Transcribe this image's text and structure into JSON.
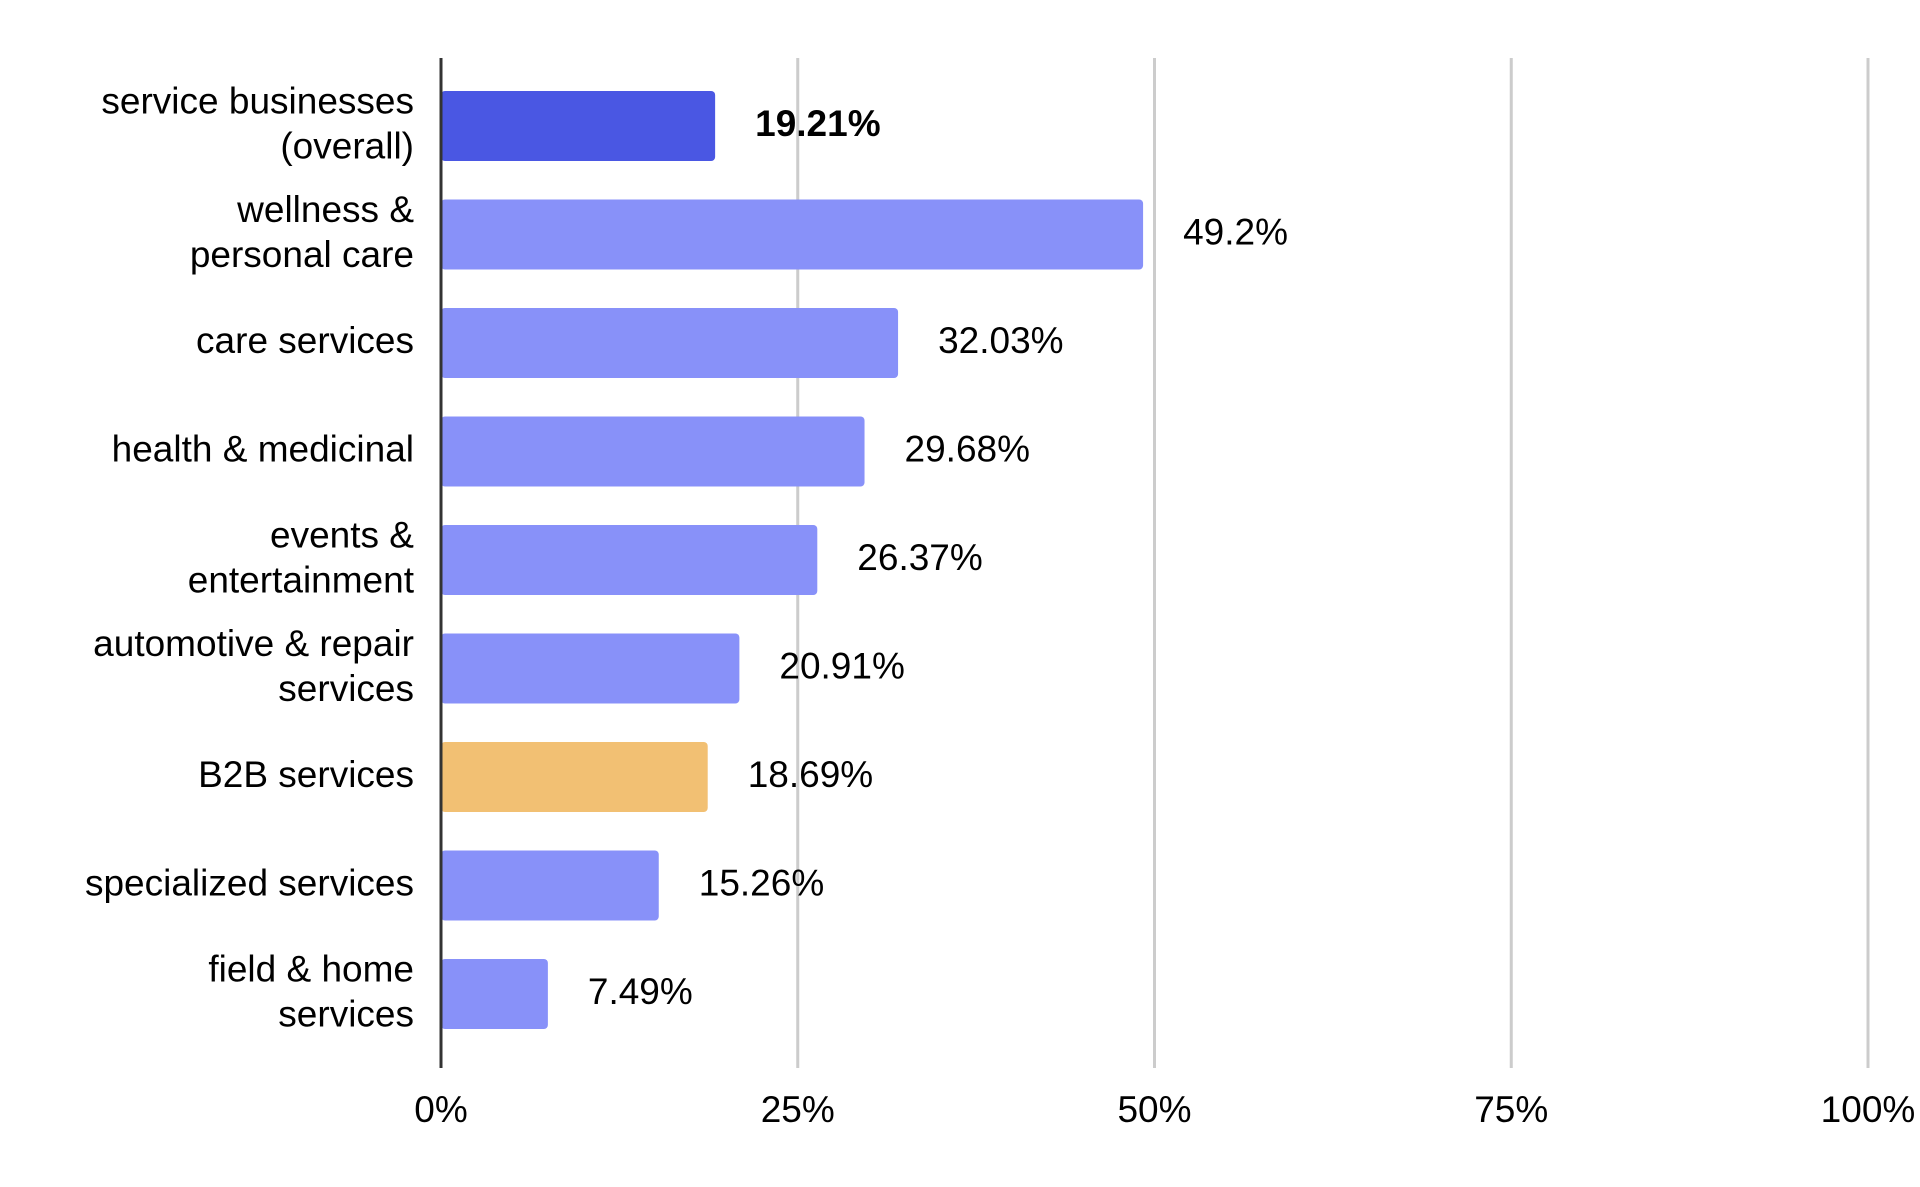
{
  "chart_data": {
    "type": "bar",
    "orientation": "horizontal",
    "categories": [
      [
        "service businesses",
        "(overall)"
      ],
      [
        "wellness &",
        "personal care"
      ],
      [
        "care services"
      ],
      [
        "health & medicinal"
      ],
      [
        "events &",
        "entertainment"
      ],
      [
        "automotive & repair",
        "services"
      ],
      [
        "B2B services"
      ],
      [
        "specialized services"
      ],
      [
        "field & home",
        "services"
      ]
    ],
    "values": [
      19.21,
      49.2,
      32.03,
      29.68,
      26.37,
      20.91,
      18.69,
      15.26,
      7.49
    ],
    "value_labels": [
      "19.21%",
      "49.2%",
      "32.03%",
      "29.68%",
      "26.37%",
      "20.91%",
      "18.69%",
      "15.26%",
      "7.49%"
    ],
    "bold_labels": [
      true,
      false,
      false,
      false,
      false,
      false,
      false,
      false,
      false
    ],
    "bar_colors": [
      "#4a57e3",
      "#8891f9",
      "#8891f9",
      "#8891f9",
      "#8891f9",
      "#8891f9",
      "#f2c073",
      "#8891f9",
      "#8891f9"
    ],
    "x_ticks": [
      0,
      25,
      50,
      75,
      100
    ],
    "x_tick_labels": [
      "0%",
      "25%",
      "50%",
      "75%",
      "100%"
    ],
    "xlim": [
      0,
      100
    ],
    "grid": true,
    "legend": "none",
    "title": "",
    "xlabel": "",
    "ylabel": ""
  }
}
